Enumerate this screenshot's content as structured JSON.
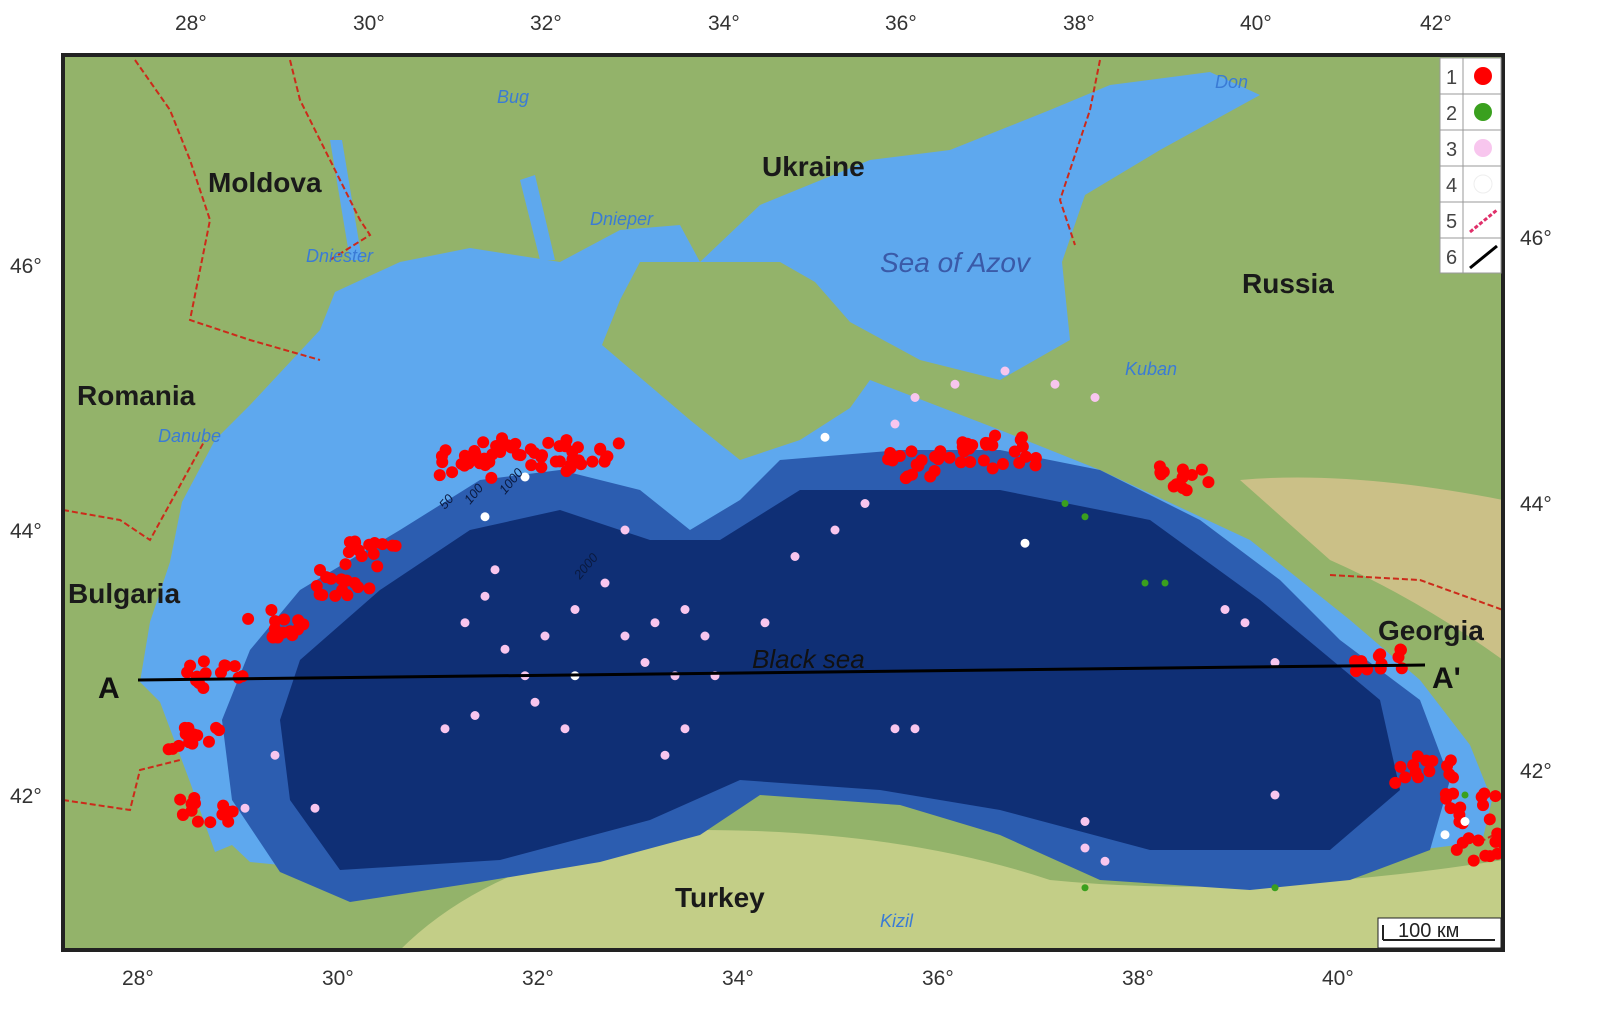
{
  "map": {
    "axes": {
      "bottom_ticks": [
        "28°",
        "30°",
        "32°",
        "34°",
        "36°",
        "38°",
        "40°"
      ],
      "top_ticks": [
        "28°",
        "30°",
        "32°",
        "34°",
        "36°",
        "38°",
        "40°",
        "42°"
      ],
      "left_ticks": [
        "46°",
        "44°",
        "42°"
      ],
      "right_ticks": [
        "46°",
        "44°",
        "42°"
      ]
    },
    "countries": [
      "Moldova",
      "Ukraine",
      "Russia",
      "Romania",
      "Bulgaria",
      "Georgia",
      "Turkey"
    ],
    "rivers": [
      "Bug",
      "Dnieper",
      "Dniester",
      "Danube",
      "Kuban",
      "Don",
      "Kizil"
    ],
    "seas": {
      "azov": "Sea of Azov",
      "black": "Black sea"
    },
    "contours": [
      "50",
      "100",
      "1000",
      "2000"
    ],
    "profile": {
      "start": "A",
      "end": "A'"
    },
    "scale_bar": "100 км",
    "legend": [
      {
        "num": "1",
        "symbol": "red-dot",
        "color": "#ff0000"
      },
      {
        "num": "2",
        "symbol": "green-dot",
        "color": "#3aa01e"
      },
      {
        "num": "3",
        "symbol": "pink-dot",
        "color": "#f8c6ee"
      },
      {
        "num": "4",
        "symbol": "white-dot",
        "color": "#ffffff"
      },
      {
        "num": "5",
        "symbol": "red-dashed-line",
        "color": "#e0306a"
      },
      {
        "num": "6",
        "symbol": "black-line",
        "color": "#000000"
      }
    ],
    "colors": {
      "land": "#93b36a",
      "shelf": "#5ea8ee",
      "deep": "#163f8c",
      "deepest": "#0f2f75",
      "border": "#cc2a1a"
    },
    "points": {
      "red_clusters": [
        [
          31.3,
          44.5
        ],
        [
          31.7,
          44.6
        ],
        [
          32.1,
          44.55
        ],
        [
          32.6,
          44.6
        ],
        [
          30.4,
          43.8
        ],
        [
          30.1,
          43.6
        ],
        [
          29.4,
          43.3
        ],
        [
          28.8,
          42.9
        ],
        [
          28.6,
          42.4
        ],
        [
          28.7,
          41.9
        ],
        [
          35.8,
          44.5
        ],
        [
          36.3,
          44.55
        ],
        [
          36.8,
          44.6
        ],
        [
          38.5,
          44.4
        ],
        [
          40.5,
          43.0
        ],
        [
          40.9,
          42.2
        ],
        [
          41.4,
          41.9
        ],
        [
          41.5,
          41.6
        ]
      ],
      "pink": [
        [
          31.6,
          43.7
        ],
        [
          31.5,
          43.5
        ],
        [
          31.3,
          43.3
        ],
        [
          31.7,
          43.1
        ],
        [
          32.1,
          43.2
        ],
        [
          32.4,
          43.4
        ],
        [
          31.9,
          42.9
        ],
        [
          32.0,
          42.7
        ],
        [
          32.3,
          42.5
        ],
        [
          32.9,
          43.2
        ],
        [
          33.1,
          43.0
        ],
        [
          33.4,
          42.9
        ],
        [
          33.7,
          43.2
        ],
        [
          33.5,
          43.4
        ],
        [
          33.2,
          43.3
        ],
        [
          32.7,
          43.6
        ],
        [
          32.9,
          44.0
        ],
        [
          31.1,
          42.5
        ],
        [
          31.4,
          42.6
        ],
        [
          29.4,
          42.3
        ],
        [
          29.1,
          41.9
        ],
        [
          29.8,
          41.9
        ],
        [
          33.3,
          42.3
        ],
        [
          33.5,
          42.5
        ],
        [
          35.6,
          42.5
        ],
        [
          35.8,
          42.5
        ],
        [
          37.5,
          41.8
        ],
        [
          37.5,
          41.6
        ],
        [
          37.7,
          41.5
        ],
        [
          39.4,
          42.0
        ],
        [
          38.9,
          43.4
        ],
        [
          39.1,
          43.3
        ],
        [
          39.4,
          43.0
        ],
        [
          34.6,
          43.8
        ],
        [
          35.0,
          44.0
        ],
        [
          35.3,
          44.2
        ],
        [
          35.6,
          44.8
        ],
        [
          36.2,
          45.1
        ],
        [
          36.7,
          45.2
        ],
        [
          37.2,
          45.1
        ],
        [
          37.6,
          45.0
        ],
        [
          35.8,
          45.0
        ],
        [
          34.3,
          43.3
        ],
        [
          33.8,
          42.9
        ]
      ],
      "white": [
        [
          34.9,
          44.7
        ],
        [
          31.9,
          44.4
        ],
        [
          31.5,
          44.1
        ],
        [
          32.4,
          42.9
        ],
        [
          36.9,
          43.9
        ],
        [
          41.1,
          41.7
        ],
        [
          41.3,
          41.8
        ]
      ],
      "green": [
        [
          37.3,
          44.2
        ],
        [
          37.5,
          44.1
        ],
        [
          38.1,
          43.6
        ],
        [
          38.3,
          43.6
        ],
        [
          41.3,
          42.0
        ],
        [
          37.5,
          41.3
        ],
        [
          39.4,
          41.3
        ]
      ]
    }
  }
}
